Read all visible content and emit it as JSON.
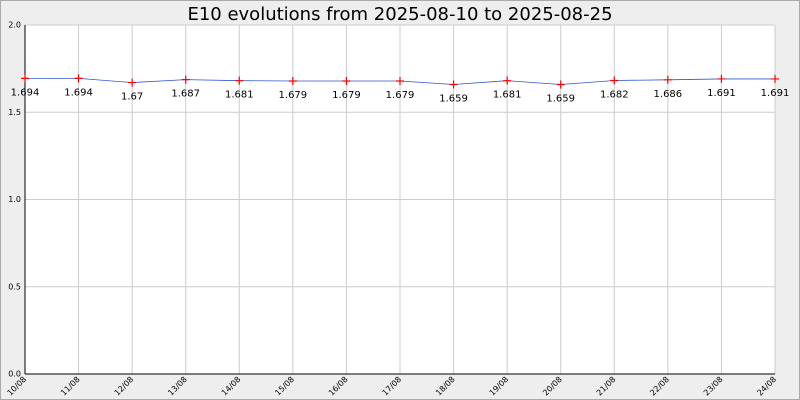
{
  "chart_data": {
    "type": "line",
    "title": "E10 evolutions from 2025-08-10 to 2025-08-25",
    "categories": [
      "10/08",
      "11/08",
      "12/08",
      "13/08",
      "14/08",
      "15/08",
      "16/08",
      "17/08",
      "18/08",
      "19/08",
      "20/08",
      "21/08",
      "22/08",
      "23/08",
      "24/08"
    ],
    "series": [
      {
        "color": "#3355cc",
        "marker_color": "#ff0000",
        "values": [
          1.694,
          1.694,
          1.67,
          1.687,
          1.681,
          1.679,
          1.679,
          1.679,
          1.659,
          1.681,
          1.659,
          1.682,
          1.686,
          1.691,
          1.691
        ]
      }
    ],
    "ylim": [
      0,
      2
    ],
    "yticks": [
      {
        "value": 0,
        "label": "0.0"
      },
      {
        "value": 0.5,
        "label": "0.5"
      },
      {
        "value": 1,
        "label": "1.0"
      },
      {
        "value": 1.5,
        "label": "1.5"
      },
      {
        "value": 2,
        "label": "2.0"
      }
    ],
    "grid": true
  }
}
